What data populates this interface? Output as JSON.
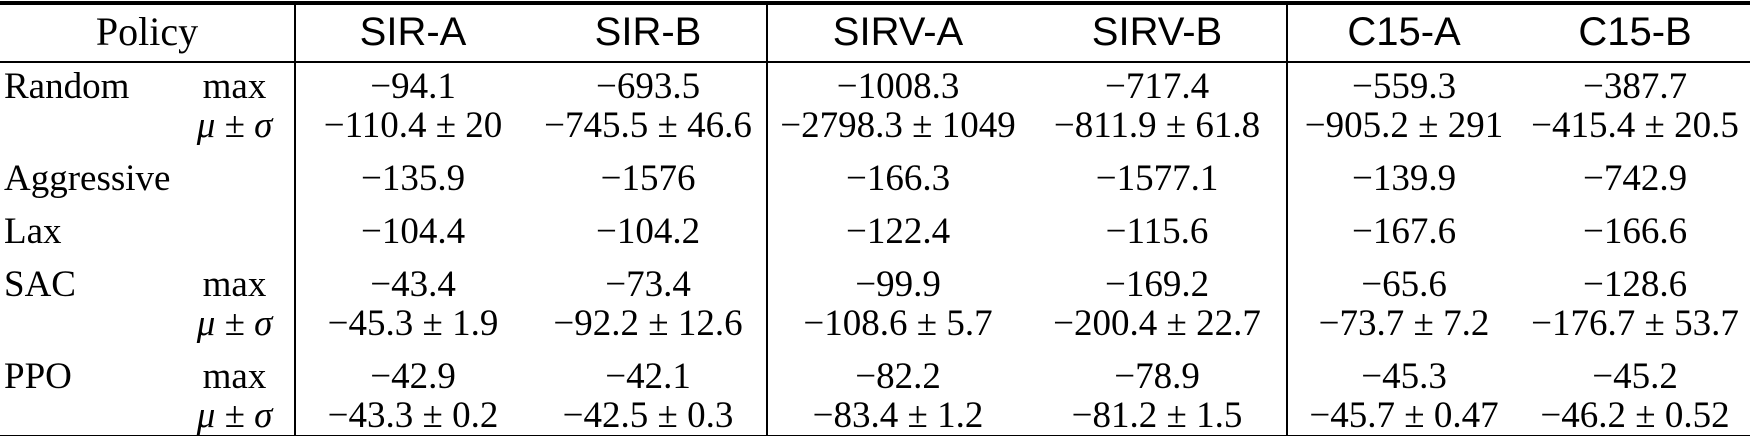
{
  "colors": {
    "text": "#000000",
    "background": "#ffffff",
    "rule": "#000000"
  },
  "table": {
    "header": {
      "policy_label": "Policy",
      "columns": [
        "SIR-A",
        "SIR-B",
        "SIRV-A",
        "SIRV-B",
        "C15-A",
        "C15-B"
      ]
    },
    "rows": [
      {
        "policy": "Random",
        "stats": [
          {
            "label": "max",
            "values": [
              "−94.1",
              "−693.5",
              "−1008.3",
              "−717.4",
              "−559.3",
              "−387.7"
            ]
          },
          {
            "label": "μ ± σ",
            "values": [
              "−110.4 ± 20",
              "−745.5 ± 46.6",
              "−2798.3 ± 1049",
              "−811.9 ± 61.8",
              "−905.2 ± 291",
              "−415.4 ± 20.5"
            ]
          }
        ]
      },
      {
        "policy": "Aggressive",
        "stats": [
          {
            "label": "",
            "values": [
              "−135.9",
              "−1576",
              "−166.3",
              "−1577.1",
              "−139.9",
              "−742.9"
            ]
          }
        ]
      },
      {
        "policy": "Lax",
        "stats": [
          {
            "label": "",
            "values": [
              "−104.4",
              "−104.2",
              "−122.4",
              "−115.6",
              "−167.6",
              "−166.6"
            ]
          }
        ]
      },
      {
        "policy": "SAC",
        "stats": [
          {
            "label": "max",
            "values": [
              "−43.4",
              "−73.4",
              "−99.9",
              "−169.2",
              "−65.6",
              "−128.6"
            ]
          },
          {
            "label": "μ ± σ",
            "values": [
              "−45.3 ± 1.9",
              "−92.2 ± 12.6",
              "−108.6 ± 5.7",
              "−200.4 ± 22.7",
              "−73.7 ± 7.2",
              "−176.7 ± 53.7"
            ]
          }
        ]
      },
      {
        "policy": "PPO",
        "stats": [
          {
            "label": "max",
            "values": [
              "−42.9",
              "−42.1",
              "−82.2",
              "−78.9",
              "−45.3",
              "−45.2"
            ]
          },
          {
            "label": "μ ± σ",
            "values": [
              "−43.3 ± 0.2",
              "−42.5 ± 0.3",
              "−83.4 ± 1.2",
              "−81.2 ± 1.5",
              "−45.7 ± 0.47",
              "−46.2 ± 0.52"
            ]
          }
        ]
      }
    ]
  }
}
